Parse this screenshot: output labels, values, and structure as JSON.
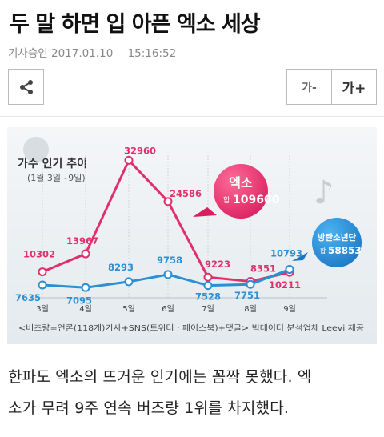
{
  "article": {
    "title": "두 말 하면 입 아픈 엑소 세상",
    "meta_label": "기사승인",
    "date": "2017.01.10",
    "time": "15:16:52",
    "paragraph": [
      "한파도 엑소의 뜨거운 인기에는 꼼짝 못했다. 엑",
      "소가 무려 9주 연속 버즈량 1위를 차지했다."
    ]
  },
  "toolbar": {
    "share_icon": "share-icon",
    "font_smaller_label": "가-",
    "font_larger_label": "가+"
  },
  "colors": {
    "exo": "#e0306b",
    "bts": "#2a8fd4",
    "chart_bg": "#eef2f4"
  },
  "chart_data": {
    "type": "line",
    "title": "가수 인기 추이",
    "subtitle": "(1월 3일~9일)",
    "categories": [
      "3일",
      "4일",
      "5일",
      "6일",
      "7일",
      "8일",
      "9일"
    ],
    "series": [
      {
        "name": "엑소",
        "color": "#e0306b",
        "values": [
          10302,
          13967,
          32960,
          24586,
          9223,
          8351,
          10211
        ]
      },
      {
        "name": "방탄소년단",
        "color": "#2a8fd4",
        "values": [
          7635,
          7095,
          8293,
          9758,
          7528,
          7751,
          10793
        ]
      }
    ],
    "callouts": [
      {
        "name": "엑소",
        "prefix": "합",
        "total": "109600"
      },
      {
        "name": "방탄소년단",
        "prefix": "합",
        "total": "58853"
      }
    ],
    "footnote": "<버즈량=언론(118개)기사+SNS(트위터 · 페이스북)+댓글> 빅데이터 분석업체 Leevi 제공"
  }
}
